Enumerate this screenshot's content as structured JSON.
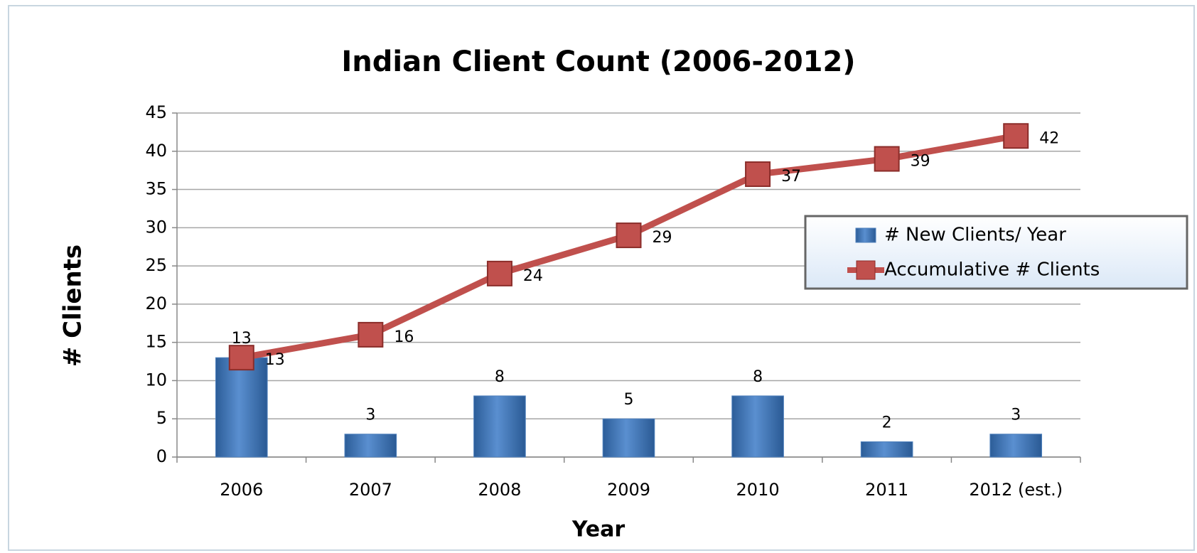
{
  "chart_data": {
    "type": "bar",
    "title": "Indian Client Count (2006-2012)",
    "x_label": "Year",
    "y_label": "# Clients",
    "categories": [
      "2006",
      "2007",
      "2008",
      "2009",
      "2010",
      "2011",
      "2012 (est.)"
    ],
    "series": [
      {
        "name": "# New Clients/ Year",
        "type": "bar",
        "color": "#4f81bd",
        "values": [
          13,
          3,
          8,
          5,
          8,
          2,
          3
        ]
      },
      {
        "name": "Accumulative # Clients",
        "type": "line",
        "color": "#c0504d",
        "values": [
          13,
          16,
          24,
          29,
          37,
          39,
          42
        ]
      }
    ],
    "ylim": [
      0,
      45
    ],
    "yticks": [
      0,
      5,
      10,
      15,
      20,
      25,
      30,
      35,
      40,
      45
    ],
    "grid": true,
    "legend": "right"
  }
}
